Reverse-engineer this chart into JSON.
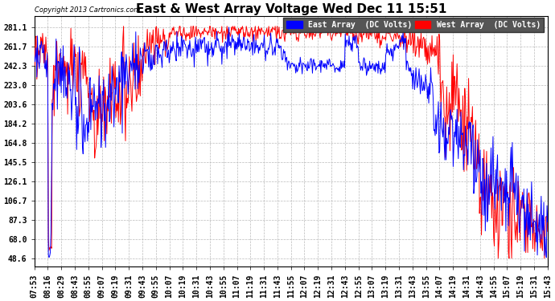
{
  "title": "East & West Array Voltage Wed Dec 11 15:51",
  "copyright": "Copyright 2013 Cartronics.com",
  "legend_east": "East Array  (DC Volts)",
  "legend_west": "West Array  (DC Volts)",
  "east_color": "#0000FF",
  "west_color": "#FF0000",
  "background_color": "#FFFFFF",
  "plot_bg_color": "#FFFFFF",
  "grid_color": "#BBBBBB",
  "yticks": [
    48.6,
    68.0,
    87.3,
    106.7,
    126.1,
    145.5,
    164.8,
    184.2,
    203.6,
    223.0,
    242.3,
    261.7,
    281.1
  ],
  "ylim": [
    40.0,
    292.0
  ],
  "title_fontsize": 11,
  "tick_fontsize": 7,
  "legend_fontsize": 7,
  "linewidth": 0.7,
  "time_labels": [
    "07:53",
    "08:16",
    "08:29",
    "08:43",
    "08:55",
    "09:07",
    "09:19",
    "09:31",
    "09:43",
    "09:55",
    "10:07",
    "10:19",
    "10:31",
    "10:43",
    "10:55",
    "11:07",
    "11:19",
    "11:31",
    "11:43",
    "11:55",
    "12:07",
    "12:19",
    "12:31",
    "12:43",
    "12:55",
    "13:07",
    "13:19",
    "13:31",
    "13:43",
    "13:55",
    "14:07",
    "14:19",
    "14:31",
    "14:43",
    "14:55",
    "15:07",
    "15:19",
    "15:31",
    "15:43"
  ]
}
